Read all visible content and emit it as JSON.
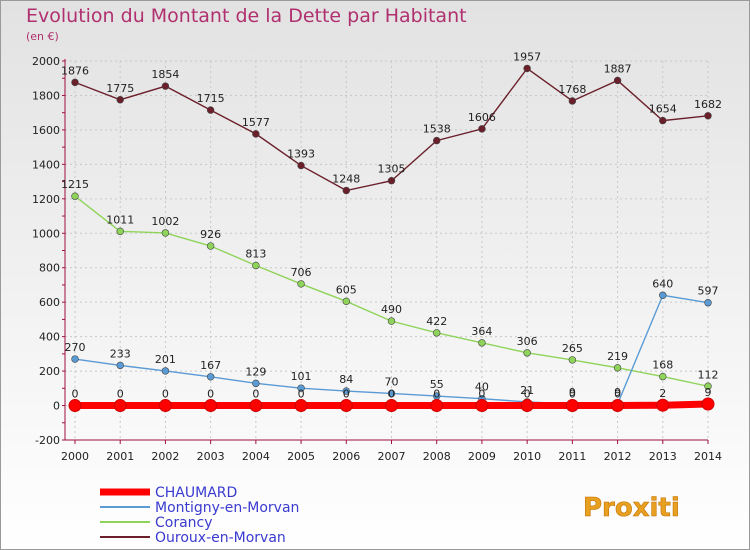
{
  "title": "Evolution du Montant de la Dette par Habitant",
  "subtitle": "(en €)",
  "brand": "Proxiti",
  "colors": {
    "title": "#b0306f",
    "legend_text": "#3a3ad0",
    "background_top": "#e4e4e4",
    "background_bottom": "#ffffff"
  },
  "chart_data": {
    "type": "line",
    "x": [
      "2000",
      "2001",
      "2002",
      "2003",
      "2004",
      "2005",
      "2006",
      "2007",
      "2008",
      "2009",
      "2010",
      "2011",
      "2012",
      "2013",
      "2014"
    ],
    "yticks": [
      "-200",
      "0",
      "200",
      "400",
      "600",
      "800",
      "1000",
      "1200",
      "1400",
      "1600",
      "1800",
      "2000"
    ],
    "ylim": [
      -200,
      2000
    ],
    "grid": true,
    "legend_position": "bottom-left",
    "series": [
      {
        "name": "Ouroux-en-Morvan",
        "color": "#6b1f2a",
        "values": [
          1876,
          1775,
          1854,
          1715,
          1577,
          1393,
          1248,
          1305,
          1538,
          1606,
          1957,
          1768,
          1887,
          1654,
          1682
        ],
        "labels": [
          "1876",
          "1775",
          "1854",
          "1715",
          "1577",
          "1393",
          "1248",
          "1305",
          "1538",
          "1606",
          "1957",
          "1768",
          "1887",
          "1654",
          "1682"
        ]
      },
      {
        "name": "Corancy",
        "color": "#8fd45a",
        "values": [
          1215,
          1011,
          1002,
          926,
          813,
          706,
          605,
          490,
          422,
          364,
          306,
          265,
          219,
          168,
          112
        ],
        "labels": [
          "1215",
          "1011",
          "1002",
          "926",
          "813",
          "706",
          "605",
          "490",
          "422",
          "364",
          "306",
          "265",
          "219",
          "168",
          "112"
        ]
      },
      {
        "name": "Montigny-en-Morvan",
        "color": "#5b9bd5",
        "values": [
          270,
          233,
          201,
          167,
          129,
          101,
          84,
          70,
          55,
          40,
          21,
          9,
          9,
          640,
          597
        ],
        "labels": [
          "270",
          "233",
          "201",
          "167",
          "129",
          "101",
          "84",
          "70",
          "55",
          "40",
          "21",
          "9",
          "9",
          "640",
          "597"
        ]
      },
      {
        "name": "CHAUMARD",
        "color": "#ff0000",
        "values": [
          0,
          0,
          0,
          0,
          0,
          0,
          0,
          0,
          0,
          0,
          0,
          0,
          0,
          2,
          9
        ],
        "labels": [
          "0",
          "0",
          "0",
          "0",
          "0",
          "0",
          "0",
          "0",
          "0",
          "0",
          "0",
          "0",
          "0",
          "2",
          "9"
        ]
      }
    ]
  }
}
